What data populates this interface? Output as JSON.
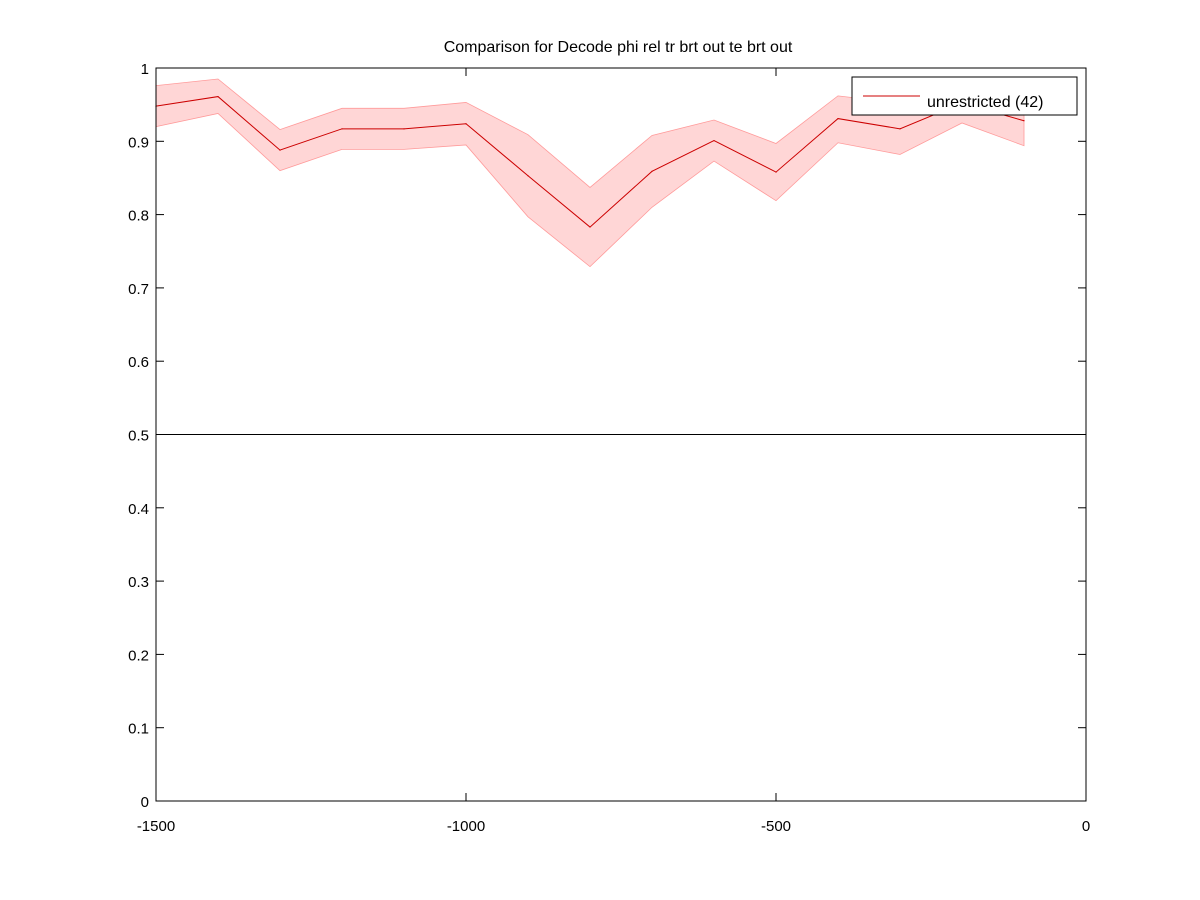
{
  "chart_data": {
    "type": "line",
    "title": "Comparison for Decode phi rel tr brt out te brt out",
    "xlabel": "",
    "ylabel": "",
    "xlim": [
      -1500,
      0
    ],
    "ylim": [
      0,
      1
    ],
    "xticks": [
      -1500,
      -1000,
      -500,
      0
    ],
    "xtick_labels": [
      "-1500",
      "-1000",
      "-500",
      "0"
    ],
    "yticks": [
      0,
      0.1,
      0.2,
      0.3,
      0.4,
      0.5,
      0.6,
      0.7,
      0.8,
      0.9,
      1
    ],
    "ytick_labels": [
      "0",
      "0.1",
      "0.2",
      "0.3",
      "0.4",
      "0.5",
      "0.6",
      "0.7",
      "0.8",
      "0.9",
      "1"
    ],
    "grid": false,
    "legend_position": "top-right",
    "reference_line": {
      "y": 0.5,
      "color": "#000000"
    },
    "series": [
      {
        "name": "unrestricted (42)",
        "color": "#cc0000",
        "band_color": "#ffd6d6",
        "x": [
          -1500,
          -1400,
          -1300,
          -1200,
          -1100,
          -1000,
          -900,
          -800,
          -700,
          -600,
          -500,
          -400,
          -300,
          -200,
          -100
        ],
        "values": [
          0.948,
          0.961,
          0.888,
          0.917,
          0.917,
          0.924,
          0.853,
          0.783,
          0.859,
          0.901,
          0.858,
          0.931,
          0.917,
          0.952,
          0.928
        ],
        "upper": [
          0.976,
          0.985,
          0.916,
          0.945,
          0.945,
          0.953,
          0.909,
          0.837,
          0.908,
          0.929,
          0.897,
          0.962,
          0.952,
          0.978,
          0.962
        ],
        "lower": [
          0.92,
          0.938,
          0.86,
          0.889,
          0.889,
          0.895,
          0.797,
          0.729,
          0.81,
          0.873,
          0.819,
          0.898,
          0.882,
          0.925,
          0.894
        ]
      }
    ]
  }
}
